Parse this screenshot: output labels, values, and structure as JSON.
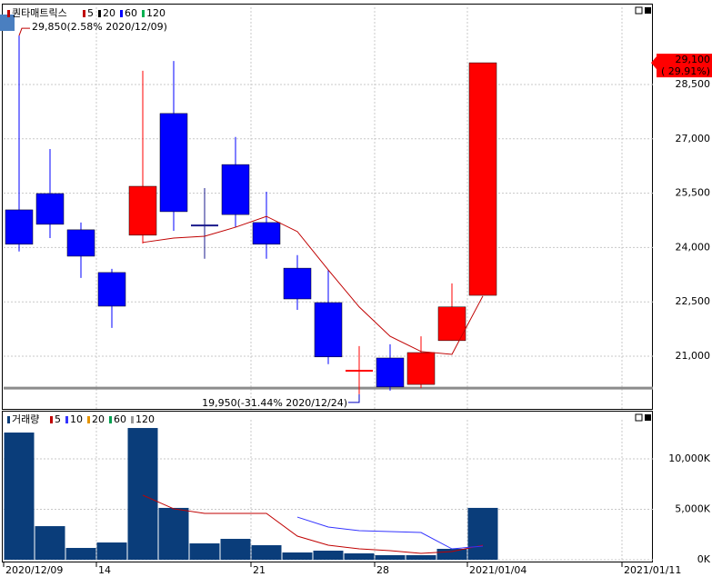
{
  "chart_data": [
    {
      "type": "candlestick",
      "title": "퀀타매트릭스",
      "open": [
        25040,
        25490,
        24490,
        23310,
        24340,
        27700,
        24610,
        26290,
        24690,
        23430,
        22480,
        20600,
        20950,
        20220,
        21430,
        22680,
        null,
        null,
        null,
        null,
        null
      ],
      "high": [
        29850,
        26720,
        24690,
        23410,
        28880,
        29150,
        25640,
        27050,
        25540,
        23790,
        23380,
        21280,
        21330,
        21550,
        23010,
        29100,
        null,
        null,
        null,
        null,
        null
      ],
      "low": [
        23890,
        24260,
        23160,
        21780,
        24110,
        24460,
        23690,
        24560,
        23690,
        22280,
        20780,
        19950,
        20050,
        20120,
        21430,
        22680,
        null,
        null,
        null,
        null,
        null
      ],
      "close": [
        24090,
        24640,
        23760,
        22380,
        25690,
        24990,
        24610,
        24910,
        24090,
        22580,
        20980,
        20600,
        20150,
        21100,
        22360,
        29100,
        null,
        null,
        null,
        null,
        null
      ],
      "colors": [
        "#0000ff",
        "#0000ff",
        "#0000ff",
        "#0000ff",
        "#ff0000",
        "#0000ff",
        "#1a1a8c",
        "#0000ff",
        "#0000ff",
        "#0000ff",
        "#0000ff",
        "#ff0000",
        "#0000ff",
        "#ff0000",
        "#ff0000",
        "#ff0000",
        null,
        null,
        null,
        null,
        null
      ],
      "series": [
        {
          "name": "5",
          "color": "#c00000",
          "values": [
            null,
            null,
            null,
            null,
            24140,
            24260,
            24310,
            24560,
            24860,
            24440,
            23380,
            22360,
            21550,
            21130,
            21050,
            22660,
            null,
            null,
            null,
            null,
            null
          ]
        },
        {
          "name": "20",
          "color": "#000000",
          "values": [
            null,
            null,
            null,
            null,
            null,
            null,
            null,
            null,
            null,
            null,
            null,
            null,
            null,
            null,
            null,
            null,
            null,
            null,
            null,
            null,
            null
          ]
        },
        {
          "name": "60",
          "color": "#0000ff",
          "values": [
            null,
            null,
            null,
            null,
            null,
            null,
            null,
            null,
            null,
            null,
            null,
            null,
            null,
            null,
            null,
            null,
            null,
            null,
            null,
            null,
            null
          ]
        },
        {
          "name": "120",
          "color": "#00b050",
          "values": [
            null,
            null,
            null,
            null,
            null,
            null,
            null,
            null,
            null,
            null,
            null,
            null,
            null,
            null,
            null,
            null,
            null,
            null,
            null,
            null,
            null
          ]
        }
      ],
      "hline": 20120,
      "ylim": [
        19545,
        30632
      ],
      "yticks": [
        {
          "value": 21000,
          "label": "21,000"
        },
        {
          "value": 22500,
          "label": "22,500"
        },
        {
          "value": 24000,
          "label": "24,000"
        },
        {
          "value": 25500,
          "label": "25,500"
        },
        {
          "value": 27000,
          "label": "27,000"
        },
        {
          "value": 28500,
          "label": "28,500"
        }
      ],
      "annotations": [
        {
          "text": "29,850(2.58% 2020/12/09)",
          "value": 29850,
          "color": "#c00000"
        },
        {
          "text": "19,950(-31.44% 2020/12/24)",
          "value": 19950,
          "color": "#0000c0"
        }
      ],
      "last_price": {
        "value": 29100,
        "label": "29,100",
        "change": "( 29.91%)",
        "color": "#ff0000"
      },
      "grid": true
    },
    {
      "type": "bar",
      "title": "거래량",
      "categories": [
        "2020/12/09",
        null,
        null,
        "14",
        null,
        null,
        null,
        null,
        "21",
        null,
        null,
        null,
        "28",
        null,
        null,
        "2021/01/04",
        null,
        null,
        null,
        null,
        "2021/01/11"
      ],
      "values": [
        12610,
        3330,
        1170,
        1710,
        13060,
        5140,
        1620,
        2070,
        1440,
        720,
        900,
        630,
        450,
        450,
        1080,
        5140,
        null,
        null,
        null,
        null,
        null
      ],
      "color": "#0a3d7a",
      "series": [
        {
          "name": "5",
          "color": "#c00000",
          "values": [
            null,
            null,
            null,
            null,
            6400,
            5050,
            4600,
            4600,
            4600,
            2340,
            1440,
            1080,
            900,
            630,
            810,
            1440,
            null,
            null,
            null,
            null,
            null
          ]
        },
        {
          "name": "10",
          "color": "#3333ff",
          "values": [
            null,
            null,
            null,
            null,
            null,
            null,
            null,
            null,
            null,
            4230,
            3240,
            2880,
            2790,
            2700,
            1080,
            1350,
            null,
            null,
            null,
            null,
            null
          ]
        },
        {
          "name": "20",
          "color": "#e59400",
          "values": [
            null,
            null,
            null,
            null,
            null,
            null,
            null,
            null,
            null,
            null,
            null,
            null,
            null,
            null,
            null,
            null,
            null,
            null,
            null,
            null,
            null
          ]
        },
        {
          "name": "60",
          "color": "#00a050",
          "values": [
            null,
            null,
            null,
            null,
            null,
            null,
            null,
            null,
            null,
            null,
            null,
            null,
            null,
            null,
            null,
            null,
            null,
            null,
            null,
            null,
            null
          ]
        },
        {
          "name": "120",
          "color": "#999999",
          "values": [
            null,
            null,
            null,
            null,
            null,
            null,
            null,
            null,
            null,
            null,
            null,
            null,
            null,
            null,
            null,
            null,
            null,
            null,
            null,
            null,
            null
          ]
        }
      ],
      "ylim": [
        0,
        13874
      ],
      "yticks": [
        {
          "value": 0,
          "label": "0K"
        },
        {
          "value": 5000,
          "label": "5,000K"
        },
        {
          "value": 10000,
          "label": "10,000K"
        }
      ],
      "grid": true
    }
  ]
}
